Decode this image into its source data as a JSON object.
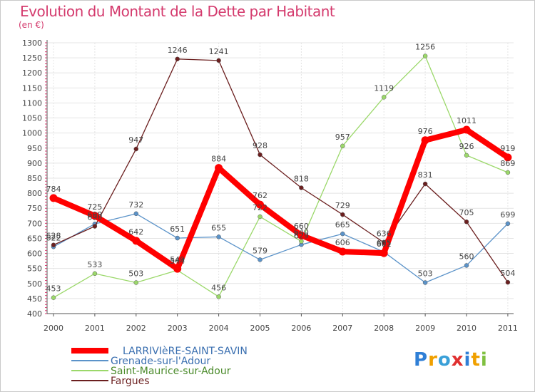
{
  "chart_data": {
    "type": "line",
    "title": "Evolution du Montant de la Dette par Habitant",
    "subtitle": "(en €)",
    "x": [
      "2000",
      "2001",
      "2002",
      "2003",
      "2004",
      "2005",
      "2006",
      "2007",
      "2008",
      "2009",
      "2010",
      "2011"
    ],
    "ylim": [
      400,
      1300
    ],
    "yticks": [
      400,
      450,
      500,
      550,
      600,
      650,
      700,
      750,
      800,
      850,
      900,
      950,
      1000,
      1050,
      1100,
      1150,
      1200,
      1250,
      1300
    ],
    "grid": true,
    "legend_position": "bottom-left",
    "series": [
      {
        "name": "LARRIVIèRE-SAINT-SAVIN",
        "color": "#ff0000",
        "values": [
          784,
          725,
          642,
          549,
          884,
          762,
          660,
          606,
          601,
          976,
          1011,
          919
        ]
      },
      {
        "name": "Grenade-sur-l'Adour",
        "color": "#5b93c9",
        "values": [
          622,
          698,
          732,
          651,
          655,
          579,
          629,
          665,
          605,
          503,
          560,
          699
        ]
      },
      {
        "name": "Saint-Maurice-sur-Adour",
        "color": "#9bd86a",
        "values": [
          453,
          533,
          503,
          544,
          456,
          722,
          640,
          957,
          1119,
          1256,
          926,
          869
        ]
      },
      {
        "name": "Fargues",
        "color": "#6b1f1f",
        "values": [
          628,
          690,
          947,
          1246,
          1241,
          928,
          818,
          729,
          636,
          831,
          705,
          504
        ]
      }
    ]
  },
  "logo": {
    "letters": [
      "P",
      "r",
      "o",
      "x",
      "i",
      "t",
      "i"
    ],
    "colors": [
      "#2f7fd6",
      "#f0a000",
      "#3aa0d8",
      "#e03030",
      "#2f7fd6",
      "#f0a000",
      "#80c040"
    ]
  }
}
